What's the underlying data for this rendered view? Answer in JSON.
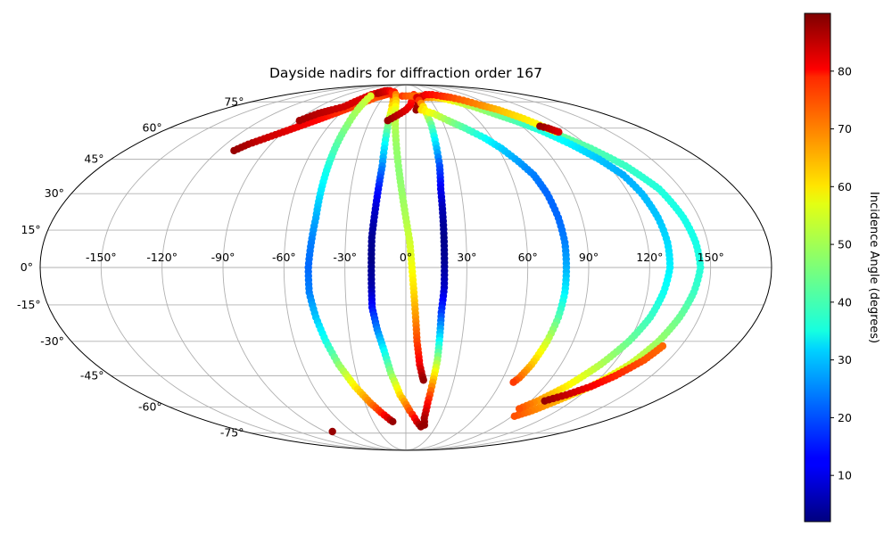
{
  "chart_data": {
    "type": "scatter",
    "title": "Dayside nadirs for diffraction order 167",
    "projection": "mollweide",
    "grid": true,
    "x_tick_labels": [
      "-150°",
      "-120°",
      "-90°",
      "-60°",
      "-30°",
      "0°",
      "30°",
      "60°",
      "90°",
      "120°",
      "150°"
    ],
    "x_tick_values": [
      -150,
      -120,
      -90,
      -60,
      -30,
      0,
      30,
      60,
      90,
      120,
      150
    ],
    "y_tick_labels": [
      "-75°",
      "-60°",
      "-45°",
      "-30°",
      "-15°",
      "0°",
      "15°",
      "30°",
      "45°",
      "60°",
      "75°"
    ],
    "y_tick_values": [
      -75,
      -60,
      -45,
      -30,
      -15,
      0,
      15,
      30,
      45,
      60,
      75
    ],
    "colorbar": {
      "label": "Incidence Angle (degrees)",
      "colormap": "jet",
      "range": [
        2,
        90
      ],
      "tick_labels": [
        "10",
        "20",
        "30",
        "40",
        "50",
        "60",
        "70",
        "80"
      ],
      "tick_values": [
        10,
        20,
        30,
        40,
        50,
        60,
        70,
        80
      ]
    },
    "series": [
      {
        "points": [
          [
            -110,
            49,
            88
          ],
          [
            -105,
            52,
            86
          ],
          [
            -100,
            54,
            84
          ],
          [
            -95,
            56,
            83
          ],
          [
            -90,
            58,
            82
          ],
          [
            -85,
            60,
            81
          ],
          [
            -80,
            62,
            80
          ],
          [
            -75,
            64,
            79
          ],
          [
            -70,
            66,
            78
          ],
          [
            -65,
            68,
            76
          ],
          [
            -60,
            70,
            75
          ],
          [
            -55,
            72,
            74
          ],
          [
            -50,
            74,
            73
          ],
          [
            -45,
            76,
            72
          ],
          [
            -40,
            78,
            72
          ],
          [
            -35,
            79,
            73
          ],
          [
            -30,
            80,
            74
          ],
          [
            -25,
            81,
            76
          ],
          [
            -20,
            82,
            77
          ]
        ]
      },
      {
        "points": [
          [
            -88,
            64,
            87
          ],
          [
            -80,
            68,
            85
          ],
          [
            -72,
            70,
            84
          ],
          [
            -64,
            72,
            83
          ],
          [
            -58,
            76,
            82
          ],
          [
            -52,
            80,
            82
          ],
          [
            -40,
            83,
            80
          ]
        ]
      },
      {
        "points": [
          [
            -50,
            79,
            54
          ],
          [
            -48,
            75,
            52
          ],
          [
            -47,
            70,
            50
          ],
          [
            -46,
            62,
            47
          ],
          [
            -46,
            55,
            44
          ],
          [
            -46,
            48,
            41
          ],
          [
            -46,
            40,
            37
          ],
          [
            -46,
            30,
            33
          ],
          [
            -46,
            20,
            28
          ],
          [
            -47,
            10,
            24
          ],
          [
            -48,
            0,
            22
          ],
          [
            -48,
            -10,
            24
          ],
          [
            -46,
            -20,
            30
          ],
          [
            -43,
            -30,
            37
          ],
          [
            -39,
            -40,
            47
          ],
          [
            -33,
            -50,
            58
          ],
          [
            -26,
            -58,
            68
          ],
          [
            -20,
            -63,
            76
          ],
          [
            -14,
            -67,
            84
          ],
          [
            -12,
            -68,
            88
          ]
        ]
      },
      {
        "points": [
          [
            -45,
            81,
            86
          ],
          [
            -40,
            82,
            84
          ],
          [
            -35,
            83,
            82
          ],
          [
            -30,
            83,
            80
          ],
          [
            -24,
            82,
            77
          ],
          [
            -18,
            80,
            72
          ],
          [
            -15,
            75,
            64
          ],
          [
            -14,
            70,
            58
          ],
          [
            -14,
            62,
            47
          ],
          [
            -14,
            52,
            35
          ],
          [
            -14,
            42,
            25
          ],
          [
            -15,
            32,
            15
          ],
          [
            -16,
            22,
            8
          ],
          [
            -17,
            12,
            4
          ],
          [
            -17,
            2,
            3
          ],
          [
            -17,
            -8,
            6
          ],
          [
            -17,
            -16,
            14
          ],
          [
            -15,
            -25,
            24
          ],
          [
            -12,
            -34,
            35
          ],
          [
            -9,
            -44,
            47
          ],
          [
            -4,
            -54,
            60
          ],
          [
            3,
            -62,
            72
          ],
          [
            10,
            -68,
            82
          ],
          [
            15,
            -71,
            88
          ]
        ]
      },
      {
        "points": [
          [
            -20,
            80,
            76
          ],
          [
            -15,
            80,
            68
          ],
          [
            -12,
            76,
            62
          ],
          [
            -10,
            70,
            55
          ],
          [
            -8,
            60,
            50
          ],
          [
            -6,
            50,
            48
          ],
          [
            -4,
            40,
            47
          ],
          [
            -2,
            30,
            48
          ],
          [
            0,
            20,
            50
          ],
          [
            2,
            10,
            53
          ],
          [
            3,
            0,
            56
          ],
          [
            4,
            -10,
            60
          ],
          [
            5,
            -20,
            66
          ],
          [
            6,
            -30,
            73
          ],
          [
            8,
            -40,
            80
          ],
          [
            10,
            -45,
            86
          ],
          [
            11,
            -47,
            88
          ]
        ]
      },
      {
        "points": [
          [
            -15,
            64,
            88
          ],
          [
            -10,
            66,
            86
          ],
          [
            -5,
            68,
            84
          ],
          [
            0,
            70,
            82
          ],
          [
            5,
            73,
            80
          ],
          [
            8,
            77,
            78
          ],
          [
            12,
            80,
            76
          ]
        ]
      },
      {
        "points": [
          [
            -5,
            79,
            74
          ],
          [
            0,
            79,
            72
          ],
          [
            10,
            79,
            70
          ],
          [
            20,
            79,
            68
          ],
          [
            30,
            79,
            66
          ],
          [
            40,
            79,
            63
          ],
          [
            50,
            78,
            60
          ],
          [
            60,
            77,
            58
          ],
          [
            70,
            74,
            56
          ],
          [
            80,
            70,
            53
          ],
          [
            90,
            66,
            50
          ],
          [
            100,
            62,
            47
          ],
          [
            110,
            56,
            44
          ],
          [
            120,
            50,
            42
          ],
          [
            130,
            42,
            40
          ],
          [
            138,
            32,
            38
          ],
          [
            142,
            20,
            37
          ],
          [
            144,
            10,
            37
          ],
          [
            145,
            0,
            38
          ],
          [
            143,
            -10,
            40
          ],
          [
            140,
            -20,
            44
          ],
          [
            136,
            -30,
            48
          ],
          [
            130,
            -40,
            53
          ],
          [
            120,
            -50,
            58
          ],
          [
            110,
            -56,
            63
          ],
          [
            100,
            -62,
            68
          ],
          [
            92,
            -65,
            72
          ]
        ]
      },
      {
        "points": [
          [
            14,
            78,
            74
          ],
          [
            20,
            78,
            71
          ],
          [
            30,
            78,
            67
          ],
          [
            40,
            78,
            63
          ],
          [
            50,
            77,
            58
          ],
          [
            60,
            75,
            54
          ],
          [
            70,
            72,
            50
          ],
          [
            80,
            68,
            46
          ],
          [
            90,
            64,
            42
          ],
          [
            100,
            59,
            38
          ],
          [
            110,
            52,
            34
          ],
          [
            118,
            45,
            30
          ],
          [
            124,
            38,
            28
          ],
          [
            127,
            30,
            29
          ],
          [
            129,
            20,
            30
          ],
          [
            130,
            10,
            32
          ],
          [
            130,
            0,
            34
          ],
          [
            128,
            -10,
            36
          ],
          [
            125,
            -20,
            40
          ],
          [
            120,
            -30,
            44
          ],
          [
            113,
            -40,
            50
          ],
          [
            104,
            -50,
            58
          ],
          [
            95,
            -57,
            66
          ],
          [
            88,
            -61,
            72
          ]
        ]
      },
      {
        "points": [
          [
            10,
            70,
            88
          ],
          [
            14,
            74,
            86
          ],
          [
            18,
            77,
            84
          ],
          [
            24,
            79,
            82
          ],
          [
            30,
            80,
            80
          ],
          [
            40,
            80,
            78
          ],
          [
            50,
            79,
            76
          ],
          [
            60,
            78,
            73
          ],
          [
            70,
            76,
            70
          ],
          [
            80,
            73,
            67
          ],
          [
            90,
            70,
            63
          ],
          [
            100,
            65,
            59
          ],
          [
            110,
            58,
            55
          ]
        ]
      },
      {
        "points": [
          [
            15,
            78,
            82
          ],
          [
            18,
            72,
            60
          ],
          [
            20,
            62,
            44
          ],
          [
            20,
            52,
            32
          ],
          [
            20,
            42,
            20
          ],
          [
            19,
            32,
            12
          ],
          [
            19,
            22,
            6
          ],
          [
            19,
            12,
            3
          ],
          [
            19,
            2,
            4
          ],
          [
            19,
            -8,
            8
          ],
          [
            18,
            -18,
            18
          ],
          [
            18,
            -28,
            32
          ],
          [
            18,
            -38,
            48
          ],
          [
            17,
            -48,
            64
          ],
          [
            16,
            -58,
            78
          ],
          [
            16,
            -66,
            86
          ],
          [
            18,
            -70,
            88
          ]
        ]
      },
      {
        "points": [
          [
            15,
            70,
            60
          ],
          [
            25,
            68,
            55
          ],
          [
            35,
            64,
            48
          ],
          [
            45,
            60,
            42
          ],
          [
            55,
            55,
            36
          ],
          [
            62,
            50,
            31
          ],
          [
            68,
            44,
            27
          ],
          [
            73,
            38,
            24
          ],
          [
            76,
            30,
            22
          ],
          [
            78,
            20,
            22
          ],
          [
            79,
            10,
            24
          ],
          [
            79,
            0,
            28
          ],
          [
            79,
            -10,
            34
          ],
          [
            78,
            -20,
            42
          ],
          [
            76,
            -30,
            52
          ],
          [
            73,
            -40,
            62
          ],
          [
            70,
            -46,
            70
          ],
          [
            68,
            -48,
            74
          ]
        ]
      },
      {
        "points": [
          [
            104,
            61,
            88
          ],
          [
            108,
            60,
            86
          ],
          [
            110,
            59,
            84
          ],
          [
            112,
            58,
            82
          ]
        ]
      },
      {
        "points": [
          [
            100,
            -57,
            88
          ],
          [
            110,
            -54,
            84
          ],
          [
            120,
            -50,
            80
          ],
          [
            128,
            -45,
            76
          ],
          [
            136,
            -38,
            72
          ],
          [
            140,
            -32,
            70
          ]
        ]
      },
      {
        "points": [
          [
            -82,
            -74,
            88
          ]
        ]
      }
    ]
  }
}
